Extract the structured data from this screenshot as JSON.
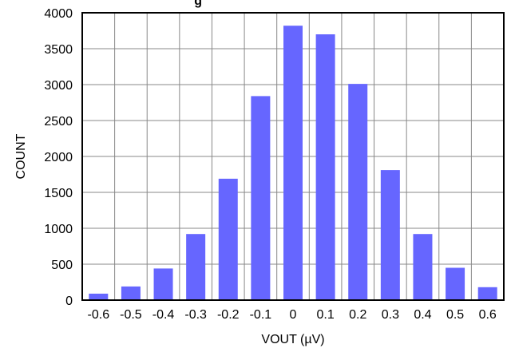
{
  "chart_data": {
    "type": "bar",
    "title": "g",
    "xlabel": "VOUT (µV)",
    "ylabel": "COUNT",
    "categories": [
      "-0.6",
      "-0.5",
      "-0.4",
      "-0.3",
      "-0.2",
      "-0.1",
      "0",
      "0.1",
      "0.2",
      "0.3",
      "0.4",
      "0.5",
      "0.6"
    ],
    "values": [
      90,
      190,
      440,
      920,
      1690,
      2840,
      3820,
      3700,
      3010,
      1810,
      920,
      450,
      180
    ],
    "ylim": [
      0,
      4000
    ],
    "yticks": [
      0,
      500,
      1000,
      1500,
      2000,
      2500,
      3000,
      3500,
      4000
    ],
    "grid": true,
    "colors": {
      "bar": "#6666ff",
      "grid": "#888888",
      "frame": "#000000"
    }
  }
}
